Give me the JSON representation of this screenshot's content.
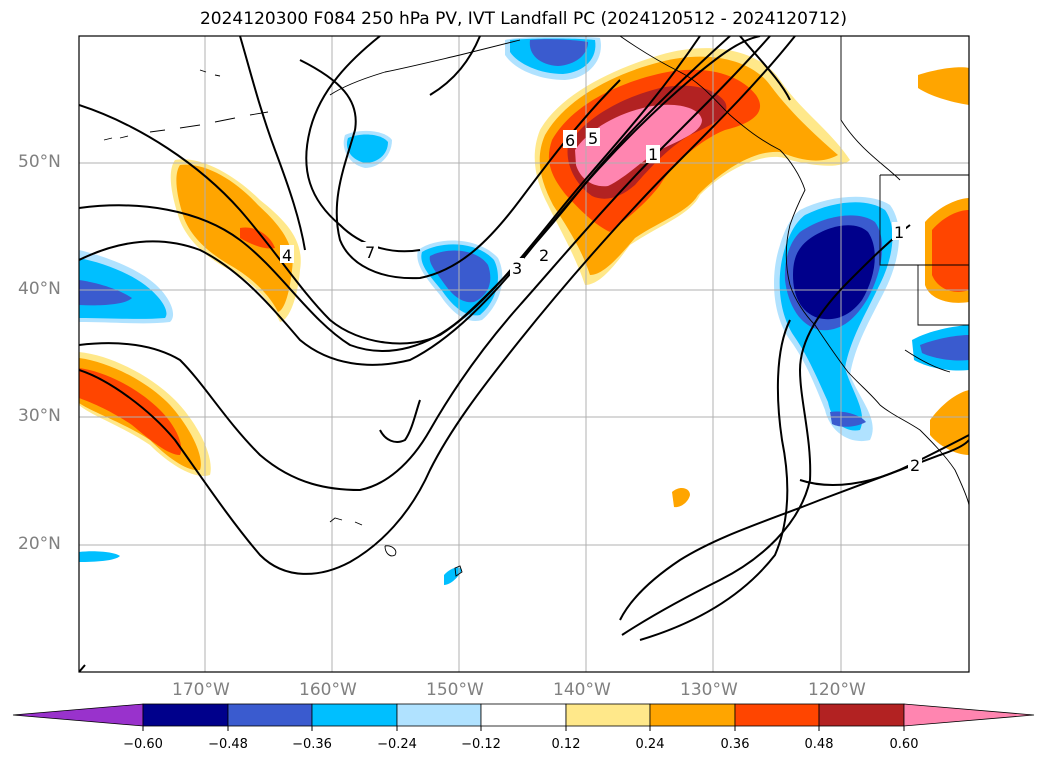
{
  "title": "2024120300 F084 250 hPa PV, IVT Landfall PC (2024120512 - 2024120712)",
  "map": {
    "lat_range": [
      10,
      60
    ],
    "lon_range": [
      -180,
      -110
    ],
    "lat_ticks": [
      "50°N",
      "40°N",
      "30°N",
      "20°N"
    ],
    "lon_ticks": [
      "170°W",
      "160°W",
      "150°W",
      "140°W",
      "130°W",
      "120°W"
    ],
    "contour_labels": [
      "7",
      "6",
      "5",
      "4",
      "3",
      "2",
      "1",
      "2",
      "1"
    ]
  },
  "colorbar": {
    "labels": [
      "−0.60",
      "−0.48",
      "−0.36",
      "−0.24",
      "−0.12",
      "0.12",
      "0.24",
      "0.36",
      "0.48",
      "0.60"
    ],
    "colors": [
      "#9932cc",
      "#00008b",
      "#3a5bcf",
      "#00bfff",
      "#b0e2ff",
      "#ffffff",
      "#ffe88a",
      "#ffa500",
      "#ff4500",
      "#b22222",
      "#ff85b0"
    ]
  },
  "colors": {
    "accent_positive": "#ff4500",
    "accent_negative": "#00008b"
  }
}
